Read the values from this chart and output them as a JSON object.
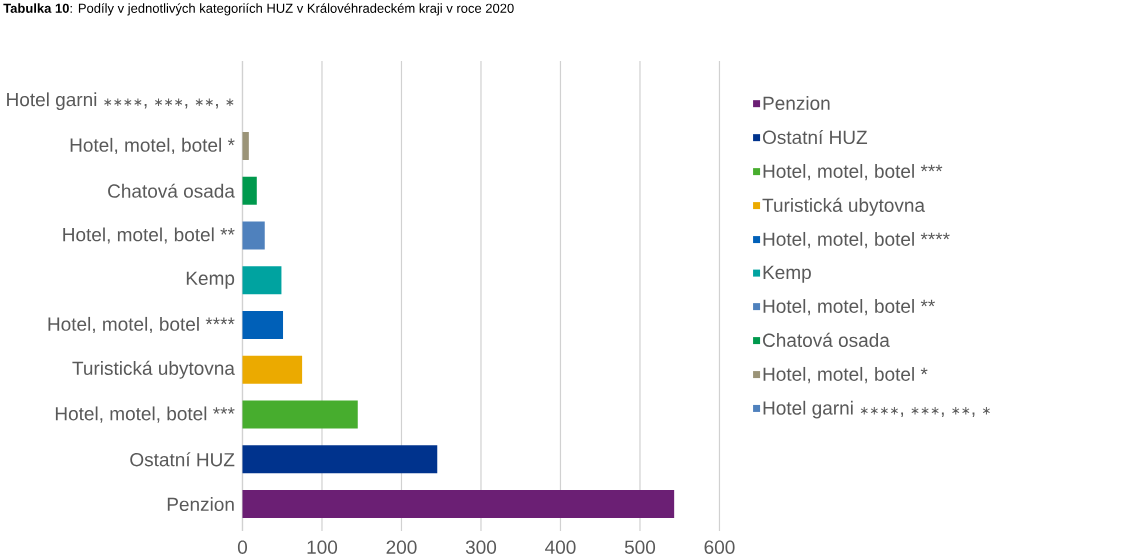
{
  "chart_data": {
    "type": "bar",
    "orientation": "horizontal",
    "title": "**Tabulka 10**: Podíly v jednotlivých kategoriích HUZ v Královéhradeckém kraji v roce 2020",
    "categories": [
      "Hotel garni ∗∗∗∗, ∗∗∗, ∗∗, ∗",
      "Hotel, motel, botel *",
      "Chatová osada",
      "Hotel, motel, botel **",
      "Kemp",
      "Hotel, motel, botel ****",
      "Turistická ubytovna",
      "Hotel, motel, botel ***",
      "Ostatní HUZ",
      "Penzion"
    ],
    "series": [
      {
        "name": "Penzion",
        "color": "#6b1f74",
        "values": [
          null,
          null,
          null,
          null,
          null,
          null,
          null,
          null,
          null,
          543
        ]
      },
      {
        "name": "Ostatní HUZ",
        "color": "#00338d",
        "values": [
          null,
          null,
          null,
          null,
          null,
          null,
          null,
          null,
          245,
          null
        ]
      },
      {
        "name": "Hotel, motel, botel ***",
        "color": "#47ad2e",
        "values": [
          null,
          null,
          null,
          null,
          null,
          null,
          null,
          145,
          null,
          null
        ]
      },
      {
        "name": "Turistická ubytovna",
        "color": "#ebaa00",
        "values": [
          null,
          null,
          null,
          null,
          null,
          null,
          75,
          null,
          null,
          null
        ]
      },
      {
        "name": "Hotel, motel, botel ****",
        "color": "#0060b8",
        "values": [
          null,
          null,
          null,
          null,
          null,
          51,
          null,
          null,
          null,
          null
        ]
      },
      {
        "name": "Kemp",
        "color": "#00a3a0",
        "values": [
          null,
          null,
          null,
          null,
          49,
          null,
          null,
          null,
          null,
          null
        ]
      },
      {
        "name": "Hotel, motel, botel **",
        "color": "#4f81bd",
        "values": [
          null,
          null,
          null,
          28,
          null,
          null,
          null,
          null,
          null,
          null
        ]
      },
      {
        "name": "Chatová osada",
        "color": "#00994d",
        "values": [
          null,
          null,
          18,
          null,
          null,
          null,
          null,
          null,
          null,
          null
        ]
      },
      {
        "name": "Hotel, motel, botel *",
        "color": "#9b9478",
        "values": [
          null,
          8,
          null,
          null,
          null,
          null,
          null,
          null,
          null,
          null
        ]
      },
      {
        "name": "Hotel garni ∗∗∗∗, ∗∗∗, ∗∗, ∗",
        "color": "#4f81bd",
        "values": [
          0,
          null,
          null,
          null,
          null,
          null,
          null,
          null,
          null,
          null
        ]
      }
    ],
    "xlim": [
      0,
      600
    ],
    "xticks": [
      0,
      100,
      200,
      300,
      400,
      500,
      600
    ],
    "grid": "x",
    "legend": "right"
  }
}
